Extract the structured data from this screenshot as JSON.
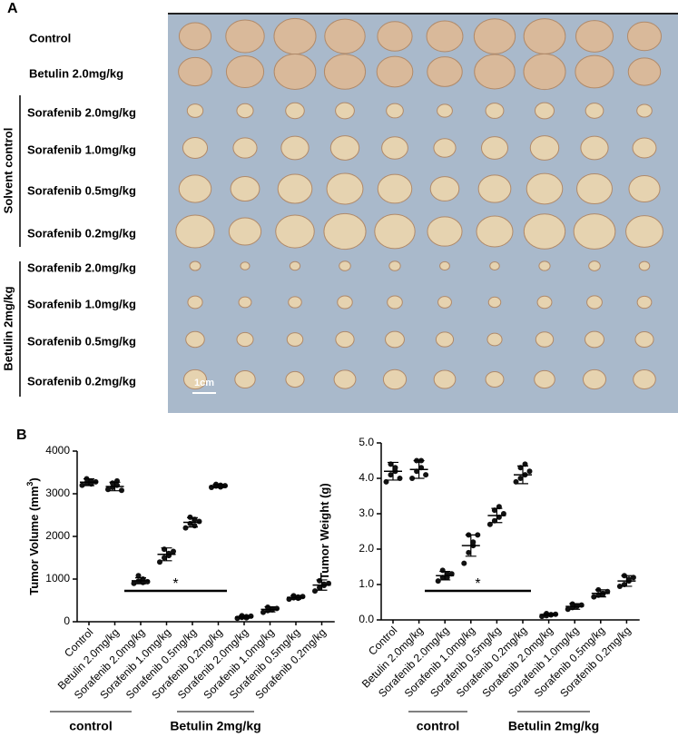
{
  "panel_a": {
    "label": "A",
    "rows": [
      "Control",
      "Betulin 2.0mg/kg",
      "Sorafenib 2.0mg/kg",
      "Sorafenib 1.0mg/kg",
      "Sorafenib 0.5mg/kg",
      "Sorafenib 0.2mg/kg",
      "Sorafenib 2.0mg/kg",
      "Sorafenib 1.0mg/kg",
      "Sorafenib 0.5mg/kg",
      "Sorafenib 0.2mg/kg"
    ],
    "brackets": [
      "Solvent control",
      "Betulin 2mg/kg"
    ],
    "scale_bar": "1cm"
  },
  "panel_b_label": "B",
  "chart_data": [
    {
      "type": "dot",
      "ylabel": [
        "Tumor Volume (mm",
        "3",
        ")"
      ],
      "categories": [
        "Control",
        "Betulin 2.0mg/kg",
        "Sorafenib 2.0mg/kg",
        "Sorafenib 1.0mg/kg",
        "Sorafenib 0.5mg/kg",
        "Sorafenib 0.2mg/kg",
        "Sorafenib 2.0mg/kg",
        "Sorafenib 1.0mg/kg",
        "Sorafenib 0.5mg/kg",
        "Sorafenib 0.2mg/kg"
      ],
      "values": [
        3270,
        3170,
        960,
        1580,
        2330,
        3180,
        110,
        290,
        570,
        860
      ],
      "errors": [
        80,
        100,
        70,
        150,
        110,
        40,
        30,
        60,
        40,
        120
      ],
      "points": [
        [
          3200,
          3250,
          3300,
          3350,
          3230,
          3280
        ],
        [
          3100,
          3150,
          3200,
          3250,
          3300,
          3080
        ],
        [
          900,
          950,
          1000,
          1080,
          920,
          940
        ],
        [
          1400,
          1500,
          1600,
          1700,
          1550,
          1650
        ],
        [
          2200,
          2300,
          2400,
          2450,
          2250,
          2350
        ],
        [
          3150,
          3180,
          3200,
          3220,
          3160,
          3190
        ],
        [
          80,
          100,
          120,
          140,
          90,
          130
        ],
        [
          220,
          260,
          300,
          340,
          280,
          310
        ],
        [
          530,
          560,
          580,
          610,
          550,
          590
        ],
        [
          720,
          800,
          880,
          960,
          850,
          900
        ]
      ],
      "ylim": [
        0,
        4000
      ],
      "yticks": [
        0,
        1000,
        2000,
        3000,
        4000
      ],
      "annotation": "*",
      "groups": [
        "control",
        "Betulin 2mg/kg"
      ]
    },
    {
      "type": "dot",
      "ylabel": [
        "Tumor Weight (g)"
      ],
      "categories": [
        "Control",
        "Betulin 2.0mg/kg",
        "Sorafenib 2.0mg/kg",
        "Sorafenib 1.0mg/kg",
        "Sorafenib 0.5mg/kg",
        "Sorafenib 0.2mg/kg",
        "Sorafenib 2.0mg/kg",
        "Sorafenib 1.0mg/kg",
        "Sorafenib 0.5mg/kg",
        "Sorafenib 0.2mg/kg"
      ],
      "values": [
        4.2,
        4.25,
        1.25,
        2.1,
        2.95,
        4.1,
        0.15,
        0.38,
        0.75,
        1.1
      ],
      "errors": [
        0.25,
        0.25,
        0.12,
        0.3,
        0.2,
        0.25,
        0.03,
        0.08,
        0.1,
        0.15
      ],
      "points": [
        [
          3.9,
          4.1,
          4.2,
          4.4,
          4.3,
          4.0
        ],
        [
          4.0,
          4.2,
          4.3,
          4.5,
          4.5,
          4.1
        ],
        [
          1.1,
          1.2,
          1.3,
          1.4,
          1.2,
          1.3
        ],
        [
          1.6,
          1.9,
          2.1,
          2.4,
          2.2,
          2.4
        ],
        [
          2.7,
          2.8,
          2.9,
          3.1,
          3.2,
          3.0
        ],
        [
          3.9,
          4.0,
          4.1,
          4.3,
          4.4,
          4.2
        ],
        [
          0.1,
          0.12,
          0.15,
          0.18,
          0.14,
          0.16
        ],
        [
          0.3,
          0.35,
          0.4,
          0.45,
          0.38,
          0.42
        ],
        [
          0.65,
          0.7,
          0.75,
          0.85,
          0.72,
          0.8
        ],
        [
          0.95,
          1.0,
          1.1,
          1.25,
          1.15,
          1.2
        ]
      ],
      "ylim": [
        0,
        5
      ],
      "yticks": [
        {
          "value": 0,
          "label": "0.0"
        },
        {
          "value": 1,
          "label": "1.0"
        },
        {
          "value": 2,
          "label": "2.0"
        },
        {
          "value": 3,
          "label": "3.0"
        },
        {
          "value": 4,
          "label": "4.0"
        },
        {
          "value": 5,
          "label": "5.0"
        }
      ],
      "annotation": "*",
      "groups": [
        "control",
        "Betulin 2mg/kg"
      ]
    }
  ]
}
